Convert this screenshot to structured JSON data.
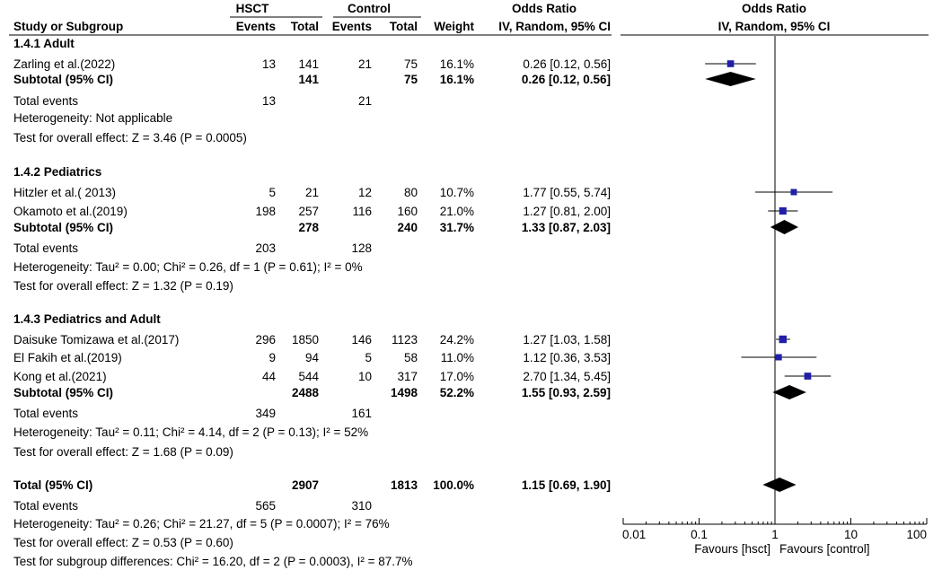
{
  "headers": {
    "group_hsct": "HSCT",
    "group_control": "Control",
    "group_or_table": "Odds Ratio",
    "group_or_plot": "Odds Ratio",
    "study": "Study or Subgroup",
    "events1": "Events",
    "total1": "Total",
    "events2": "Events",
    "total2": "Total",
    "weight": "Weight",
    "method_table": "IV, Random, 95% CI",
    "method_plot": "IV, Random, 95% CI"
  },
  "subgroups": [
    {
      "title": "1.4.1 Adult",
      "studies": [
        {
          "name": "Zarling et al.(2022)",
          "e1": "13",
          "n1": "141",
          "e2": "21",
          "n2": "75",
          "weight": "16.1%",
          "ci": "0.26 [0.12, 0.56]",
          "or": 0.26,
          "lo": 0.12,
          "hi": 0.56,
          "w": 16.1
        }
      ],
      "subtotal": {
        "label": "Subtotal (95% CI)",
        "n1": "141",
        "n2": "75",
        "weight": "16.1%",
        "ci": "0.26 [0.12, 0.56]",
        "or": 0.26,
        "lo": 0.12,
        "hi": 0.56
      },
      "total_events": {
        "label": "Total events",
        "e1": "13",
        "e2": "21"
      },
      "heterogeneity": "Heterogeneity: Not applicable",
      "overall": "Test for overall effect: Z = 3.46 (P = 0.0005)"
    },
    {
      "title": "1.4.2 Pediatrics",
      "studies": [
        {
          "name": "Hitzler et al.( 2013)",
          "e1": "5",
          "n1": "21",
          "e2": "12",
          "n2": "80",
          "weight": "10.7%",
          "ci": "1.77 [0.55, 5.74]",
          "or": 1.77,
          "lo": 0.55,
          "hi": 5.74,
          "w": 10.7
        },
        {
          "name": "Okamoto et al.(2019)",
          "e1": "198",
          "n1": "257",
          "e2": "116",
          "n2": "160",
          "weight": "21.0%",
          "ci": "1.27 [0.81, 2.00]",
          "or": 1.27,
          "lo": 0.81,
          "hi": 2.0,
          "w": 21.0
        }
      ],
      "subtotal": {
        "label": "Subtotal (95% CI)",
        "n1": "278",
        "n2": "240",
        "weight": "31.7%",
        "ci": "1.33 [0.87, 2.03]",
        "or": 1.33,
        "lo": 0.87,
        "hi": 2.03
      },
      "total_events": {
        "label": "Total events",
        "e1": "203",
        "e2": "128"
      },
      "heterogeneity": "Heterogeneity: Tau² = 0.00; Chi² = 0.26, df = 1 (P = 0.61); I² = 0%",
      "overall": "Test for overall effect: Z = 1.32 (P = 0.19)"
    },
    {
      "title": "1.4.3 Pediatrics and Adult",
      "studies": [
        {
          "name": "Daisuke Tomizawa et al.(2017)",
          "e1": "296",
          "n1": "1850",
          "e2": "146",
          "n2": "1123",
          "weight": "24.2%",
          "ci": "1.27 [1.03, 1.58]",
          "or": 1.27,
          "lo": 1.03,
          "hi": 1.58,
          "w": 24.2
        },
        {
          "name": "El Fakih et al.(2019)",
          "e1": "9",
          "n1": "94",
          "e2": "5",
          "n2": "58",
          "weight": "11.0%",
          "ci": "1.12 [0.36, 3.53]",
          "or": 1.12,
          "lo": 0.36,
          "hi": 3.53,
          "w": 11.0
        },
        {
          "name": "Kong et al.(2021)",
          "e1": "44",
          "n1": "544",
          "e2": "10",
          "n2": "317",
          "weight": "17.0%",
          "ci": "2.70 [1.34, 5.45]",
          "or": 2.7,
          "lo": 1.34,
          "hi": 5.45,
          "w": 17.0
        }
      ],
      "subtotal": {
        "label": "Subtotal (95% CI)",
        "n1": "2488",
        "n2": "1498",
        "weight": "52.2%",
        "ci": "1.55 [0.93, 2.59]",
        "or": 1.55,
        "lo": 0.93,
        "hi": 2.59
      },
      "total_events": {
        "label": "Total events",
        "e1": "349",
        "e2": "161"
      },
      "heterogeneity": "Heterogeneity: Tau² = 0.11; Chi² = 4.14, df = 2 (P = 0.13); I² = 52%",
      "overall": "Test for overall effect: Z = 1.68 (P = 0.09)"
    }
  ],
  "total": {
    "label": "Total (95% CI)",
    "n1": "2907",
    "n2": "1813",
    "weight": "100.0%",
    "ci": "1.15 [0.69, 1.90]",
    "or": 1.15,
    "lo": 0.69,
    "hi": 1.9,
    "events_label": "Total events",
    "e1": "565",
    "e2": "310",
    "heterogeneity": "Heterogeneity: Tau² = 0.26; Chi² = 21.27, df = 5 (P = 0.0007); I² = 76%",
    "overall": "Test for overall effect: Z = 0.53 (P = 0.60)",
    "subgroup_diff": "Test for subgroup differences: Chi² = 16.20, df = 2 (P = 0.0003), I² = 87.7%"
  },
  "axis": {
    "ticks": [
      0.01,
      0.1,
      1,
      10,
      100
    ],
    "tick_labels": [
      "0.01",
      "0.1",
      "1",
      "10",
      "100"
    ],
    "favours_left": "Favours [hsct]",
    "favours_right": "Favours [control]",
    "scale": "log"
  },
  "colors": {
    "marker": "#1f1fa8",
    "text": "#000000",
    "line": "#000000"
  },
  "chart_data": {
    "type": "scatter",
    "x_scale": "log",
    "xlim": [
      0.01,
      100
    ],
    "series": [
      {
        "name": "Zarling et al.(2022)",
        "or": 0.26,
        "lo": 0.12,
        "hi": 0.56
      },
      {
        "name": "Hitzler et al.( 2013)",
        "or": 1.77,
        "lo": 0.55,
        "hi": 5.74
      },
      {
        "name": "Okamoto et al.(2019)",
        "or": 1.27,
        "lo": 0.81,
        "hi": 2.0
      },
      {
        "name": "Daisuke Tomizawa et al.(2017)",
        "or": 1.27,
        "lo": 1.03,
        "hi": 1.58
      },
      {
        "name": "El Fakih et al.(2019)",
        "or": 1.12,
        "lo": 0.36,
        "hi": 3.53
      },
      {
        "name": "Kong et al.(2021)",
        "or": 2.7,
        "lo": 1.34,
        "hi": 5.45
      }
    ]
  }
}
